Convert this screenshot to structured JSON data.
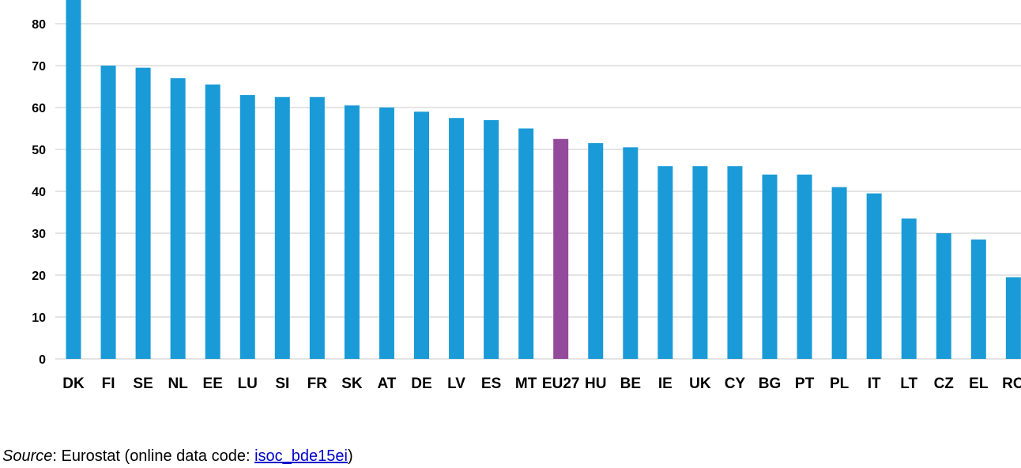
{
  "chart_data": {
    "type": "bar",
    "categories": [
      "DK",
      "FI",
      "SE",
      "NL",
      "EE",
      "LU",
      "SI",
      "FR",
      "SK",
      "AT",
      "DE",
      "LV",
      "ES",
      "MT",
      "EU27",
      "HU",
      "BE",
      "IE",
      "UK",
      "CY",
      "BG",
      "PT",
      "PL",
      "IT",
      "LT",
      "CZ",
      "EL",
      "RO"
    ],
    "values": [
      86,
      70,
      69.5,
      67,
      65.5,
      63,
      62.5,
      62.5,
      60.5,
      60,
      59,
      57.5,
      57,
      55,
      52.5,
      51.5,
      50.5,
      46,
      46,
      46,
      44,
      44,
      41,
      39.5,
      33.5,
      30,
      28.5,
      19.5
    ],
    "highlight_category": "EU27",
    "yticks": [
      0,
      10,
      20,
      30,
      40,
      50,
      60,
      70,
      80
    ],
    "ylim": [
      0,
      86
    ],
    "grid": true,
    "colors": {
      "bar": "#1a9bd7",
      "highlight": "#944a9b",
      "grid": "#c8c8c8"
    }
  },
  "source": {
    "label": "Source",
    "text_before": ": Eurostat (online data code: ",
    "link_text": "isoc_bde15ei",
    "text_after": ")"
  }
}
